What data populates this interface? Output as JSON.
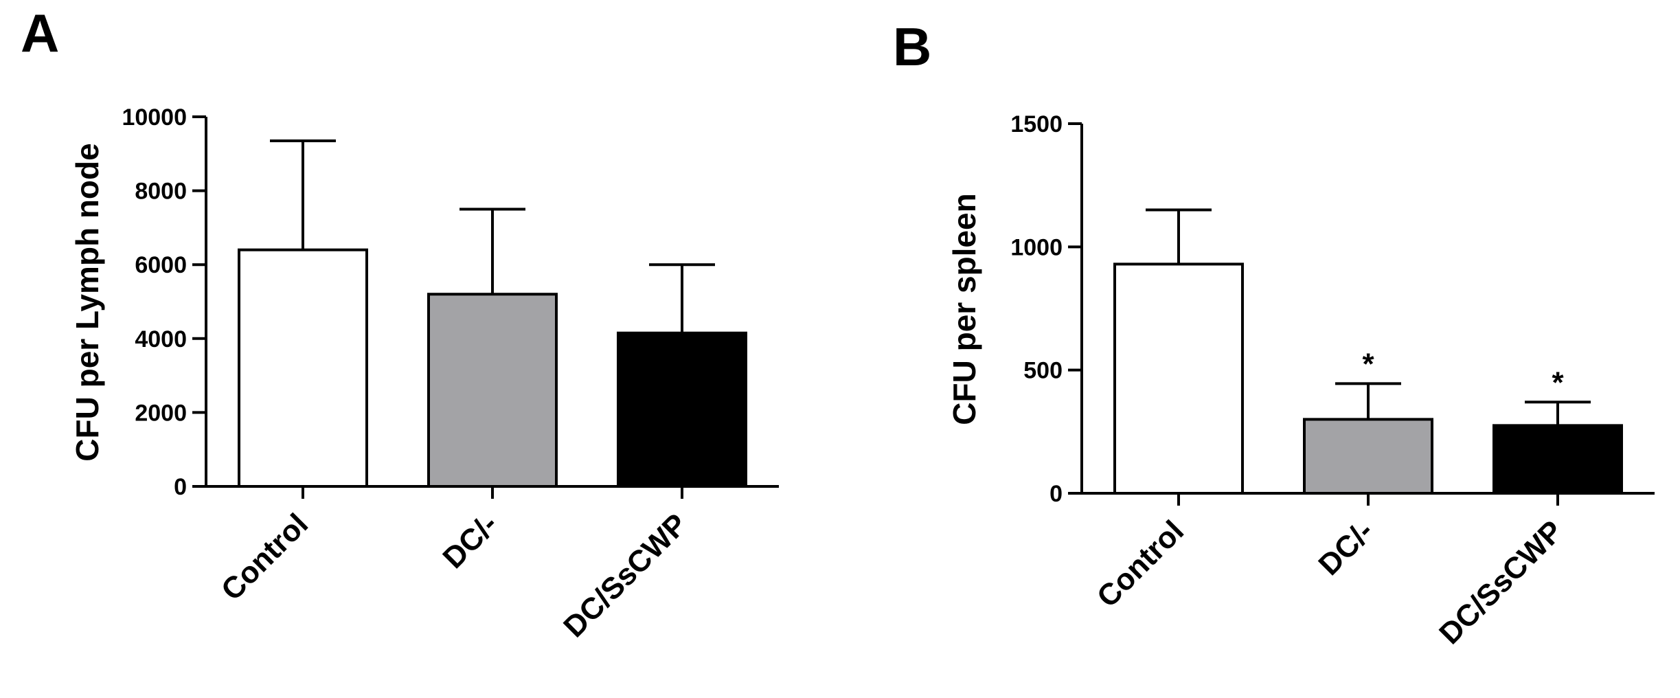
{
  "chart_data": [
    {
      "type": "bar",
      "panel": "A",
      "ylabel": "CFU per Lymph node",
      "ylim": [
        0,
        10000
      ],
      "yticks": [
        0,
        2000,
        4000,
        6000,
        8000,
        10000
      ],
      "categories": [
        "Control",
        "DC/-",
        "DC/SsCWP"
      ],
      "values": [
        6400,
        5200,
        4150
      ],
      "errors": [
        2950,
        2300,
        1850
      ],
      "bar_colors": [
        "#ffffff",
        "#a3a3a6",
        "#000000"
      ],
      "annotations": [
        "",
        "",
        ""
      ]
    },
    {
      "type": "bar",
      "panel": "B",
      "ylabel": "CFU per spleen",
      "ylim": [
        0,
        1500
      ],
      "yticks": [
        0,
        500,
        1000,
        1500
      ],
      "categories": [
        "Control",
        "DC/-",
        "DC/SsCWP"
      ],
      "values": [
        930,
        300,
        275
      ],
      "errors": [
        220,
        145,
        95
      ],
      "bar_colors": [
        "#ffffff",
        "#a3a3a6",
        "#000000"
      ],
      "annotations": [
        "",
        "*",
        "*"
      ]
    }
  ]
}
